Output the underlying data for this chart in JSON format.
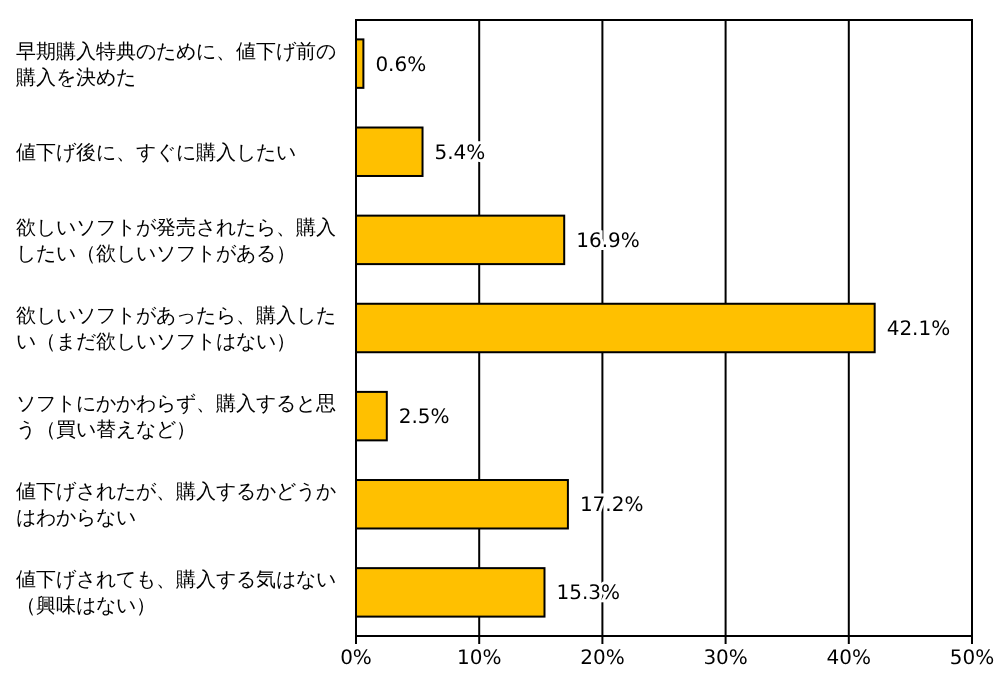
{
  "chart_data": {
    "type": "bar",
    "orientation": "horizontal",
    "categories": [
      "早期購入特典のために、値下げ前の購入を決めた",
      "値下げ後に、すぐに購入したい",
      "欲しいソフトが発売されたら、購入したい（欲しいソフトがある）",
      "欲しいソフトがあったら、購入したい（まだ欲しいソフトはない）",
      "ソフトにかかわらず、購入すると思う（買い替えなど）",
      "値下げされたが、購入するかどうかはわからない",
      "値下げされても、購入する気はない（興味はない）"
    ],
    "values": [
      0.6,
      5.4,
      16.9,
      42.1,
      2.5,
      17.2,
      15.3
    ],
    "value_labels": [
      "0.6%",
      "5.4%",
      "16.9%",
      "42.1%",
      "2.5%",
      "17.2%",
      "15.3%"
    ],
    "color": "#ffc000",
    "xlim": [
      0,
      50
    ],
    "xticks": [
      {
        "value": 0,
        "label": "0%"
      },
      {
        "value": 10,
        "label": "10%"
      },
      {
        "value": 20,
        "label": "20%"
      },
      {
        "value": 30,
        "label": "30%"
      },
      {
        "value": 40,
        "label": "40%"
      },
      {
        "value": 50,
        "label": "50%"
      }
    ],
    "grid": "x"
  }
}
